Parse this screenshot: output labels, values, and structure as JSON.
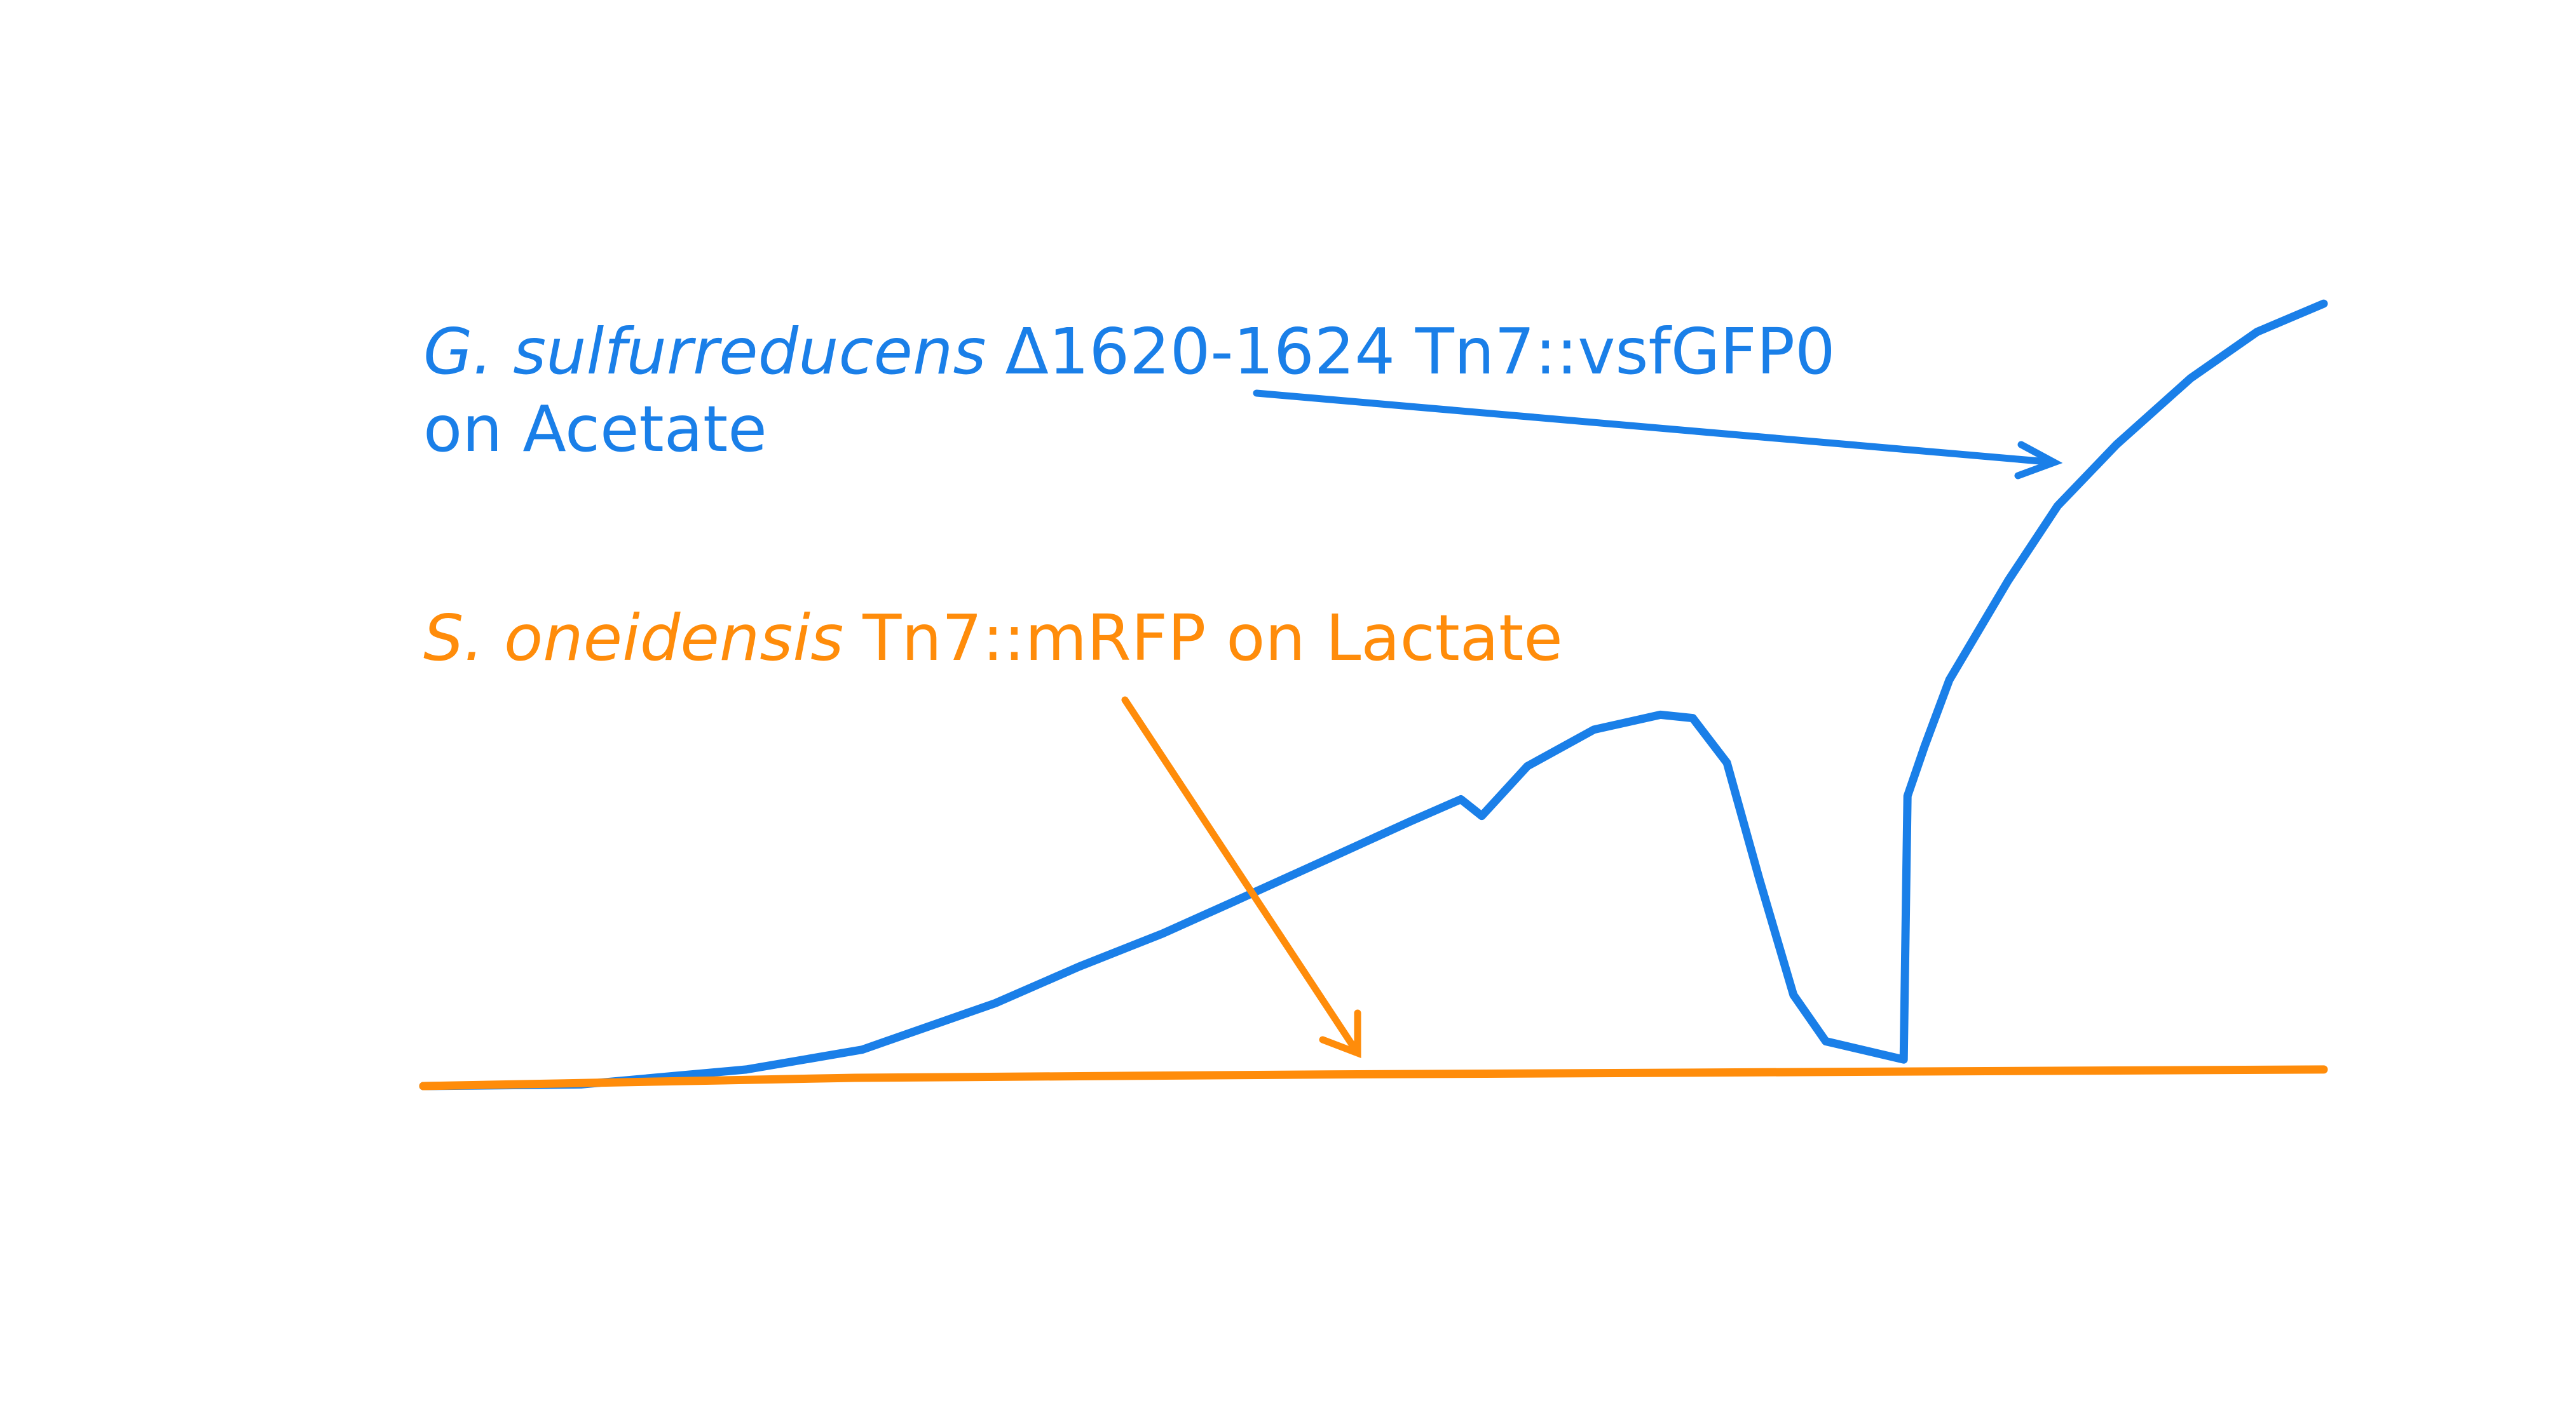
{
  "chart_data": {
    "type": "line",
    "xlim": [
      0,
      100
    ],
    "ylim": [
      0,
      100
    ],
    "series": [
      {
        "color": "#1a7fe8",
        "label": {
          "italic": "G. sulfurreducens",
          "text": "Δ1620-1624 Tn7::vsfGFP0",
          "line2": "on Acetate"
        },
        "x": [
          0,
          8.3,
          17,
          23.1,
          30.1,
          34.5,
          38.9,
          42.4,
          47.6,
          52,
          54.6,
          55.7,
          58.1,
          61.6,
          65.1,
          66.8,
          68.6,
          70.3,
          72.1,
          73.8,
          77.9,
          78.1,
          79,
          80.3,
          83.4,
          86,
          89.1,
          93,
          96.5,
          100
        ],
        "values": [
          0,
          0.2,
          2,
          4.4,
          10,
          14.4,
          18.4,
          22,
          27.4,
          32,
          34.6,
          32.6,
          38.6,
          43,
          44.8,
          44.4,
          39,
          25,
          11,
          5.4,
          3.2,
          35,
          41,
          49,
          61,
          70,
          77.4,
          85.4,
          91,
          94.4
        ]
      },
      {
        "color": "#ff8c0a",
        "label": {
          "italic": "S. oneidensis",
          "text": "Tn7::mRFP on Lactate"
        },
        "x": [
          0,
          22.7,
          47.6,
          100
        ],
        "values": [
          0,
          1,
          1.4,
          2
        ]
      }
    ]
  }
}
